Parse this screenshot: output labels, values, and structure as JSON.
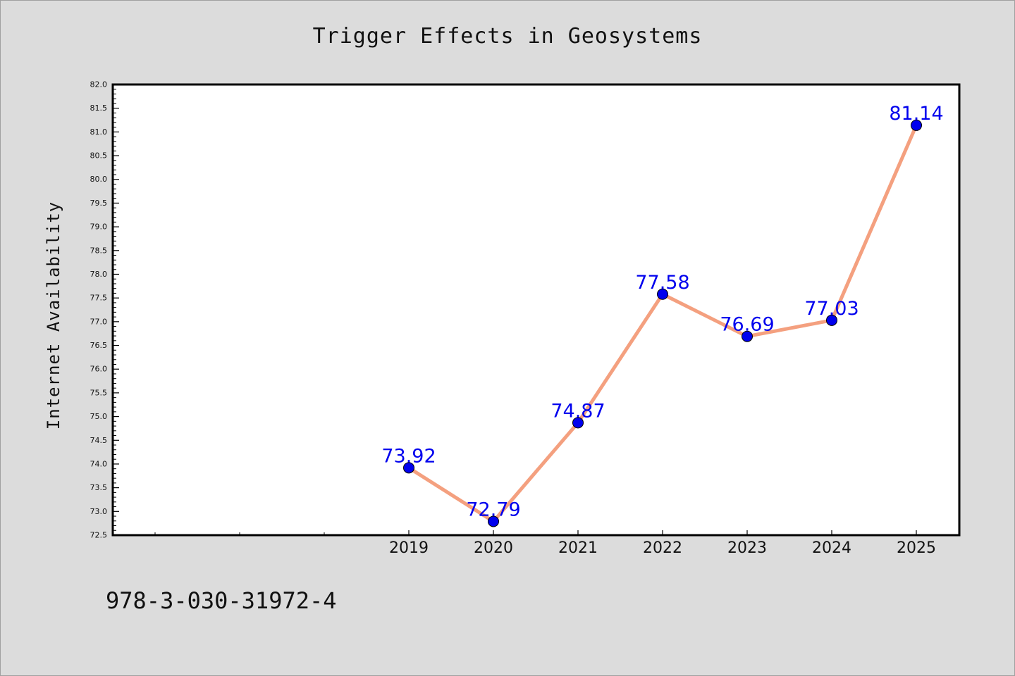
{
  "chart_data": {
    "type": "line",
    "title": "Trigger Effects in Geosystems",
    "xlabel": "",
    "ylabel": "Internet Availability",
    "categories": [
      "2019",
      "2020",
      "2021",
      "2022",
      "2023",
      "2024",
      "2025"
    ],
    "series": [
      {
        "values": [
          73.92,
          72.79,
          74.87,
          77.58,
          76.69,
          77.03,
          81.14
        ],
        "data_labels": [
          "73.92",
          "72.79",
          "74.87",
          "77.58",
          "76.69",
          "77.03",
          "81.14"
        ]
      }
    ],
    "ylim": [
      72.5,
      82.0
    ],
    "yticks": [
      "72.5",
      "73.0",
      "73.5",
      "74.0",
      "74.5",
      "75.0",
      "75.5",
      "76.0",
      "76.5",
      "77.0",
      "77.5",
      "78.0",
      "78.5",
      "79.0",
      "79.5",
      "80.0",
      "80.5",
      "81.0",
      "81.5",
      "82.0"
    ],
    "grid": false,
    "legend": "none",
    "colors": {
      "line": "#f4a07f",
      "marker": "#0000ee",
      "data_label": "#0000ee",
      "plot_background": "#ffffff",
      "page_background": "#dcdcdc"
    }
  },
  "footer": {
    "isbn": "978-3-030-31972-4"
  }
}
